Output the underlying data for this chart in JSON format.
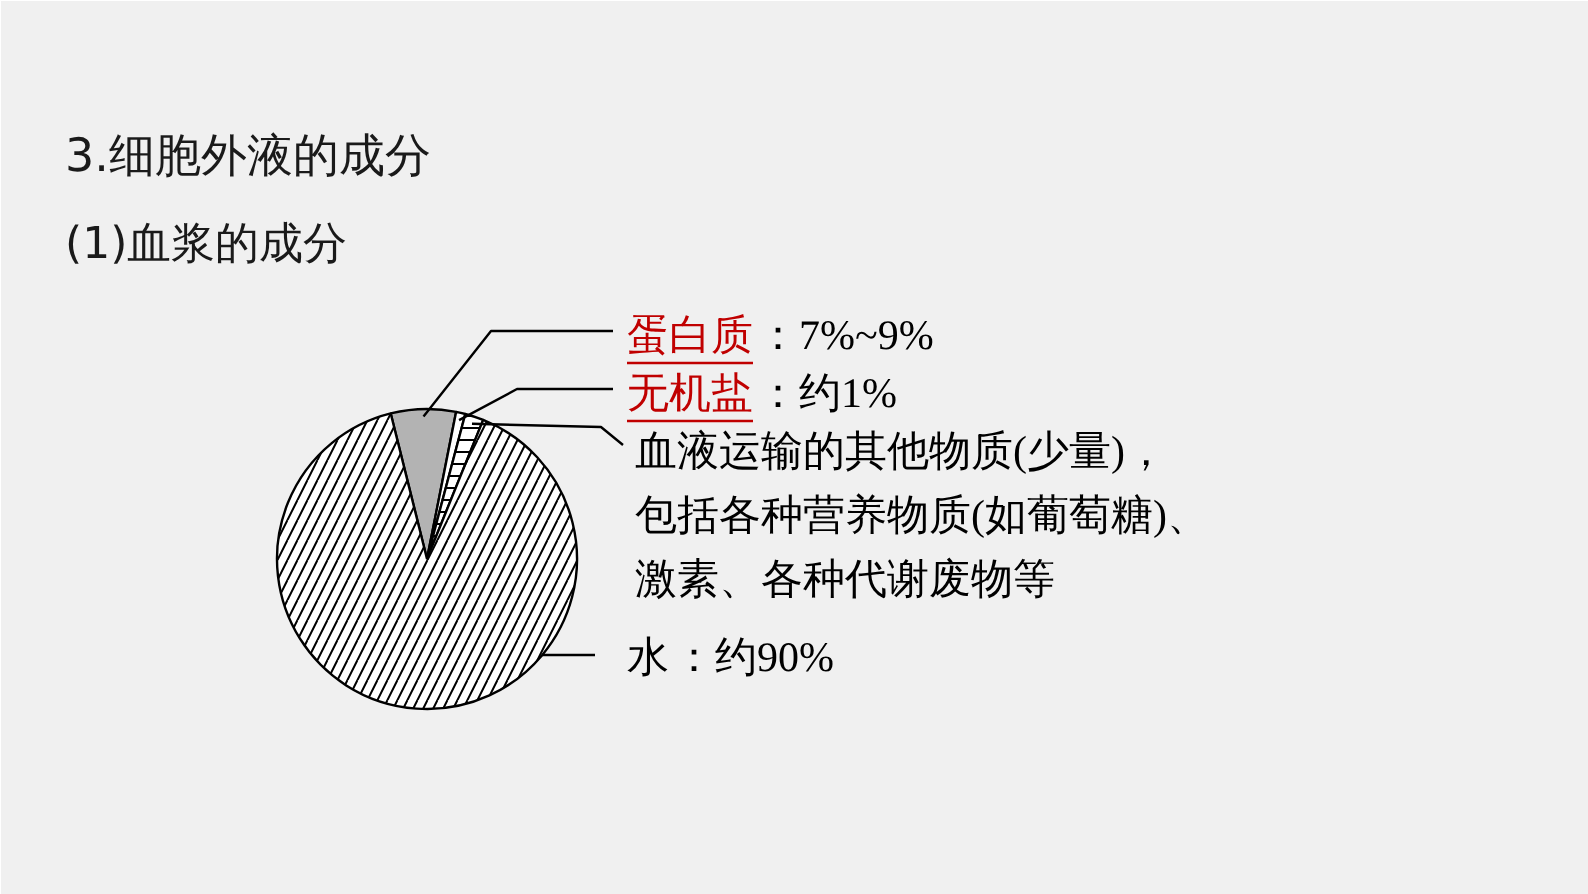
{
  "chart_data": {
    "type": "pie",
    "title": "3.细胞外液的成分",
    "subtitle": "(1)血浆的成分",
    "categories": [
      "蛋白质",
      "无机盐",
      "血液运输的其他物质(少量)，包括各种营养物质(如葡萄糖)、激素、各种代谢废物等",
      "水"
    ],
    "values": [
      7,
      1,
      2,
      90
    ],
    "colors": [
      "#b3b3b3",
      "#ffffff",
      "#ffffff",
      "#ffffff"
    ],
    "value_labels": [
      "：7%~9%",
      "：约1%",
      null,
      "：约90%"
    ]
  }
}
